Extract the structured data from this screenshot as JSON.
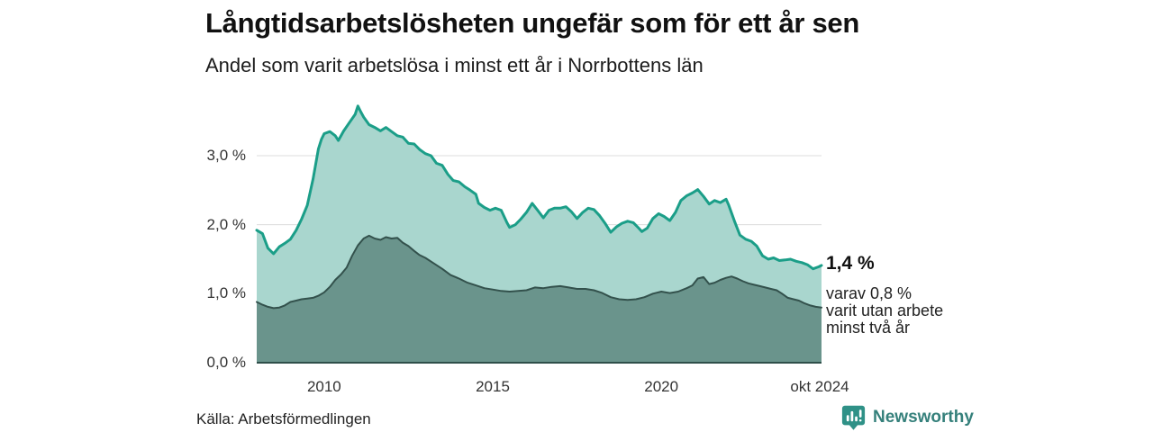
{
  "header": {
    "title": "Långtidsarbetslösheten ungefär som för ett år sen",
    "subtitle": "Andel som varit arbetslösa i minst ett år i Norrbottens län"
  },
  "annotation": {
    "value_label": "1,4 %",
    "sub_line1": "varav 0,8 %",
    "sub_line2": "varit utan arbete",
    "sub_line3": "minst två år"
  },
  "footer": {
    "source": "Källa: Arbetsförmedlingen",
    "brand": "Newsworthy",
    "brand_icon": "bar-chart-bubble-icon"
  },
  "colors": {
    "line_primary": "#1b9e88",
    "fill_primary": "#a9d6ce",
    "line_secondary": "#33514c",
    "fill_secondary": "#6a948c",
    "grid": "#dcdcdc",
    "baseline": "#2f4f4a",
    "brand_teal": "#35807b",
    "brand_icon_teal": "#2f9187"
  },
  "chart_data": {
    "type": "area",
    "title": "Långtidsarbetslösheten ungefär som för ett år sen",
    "subtitle": "Andel som varit arbetslösa i minst ett år i Norrbottens län",
    "unit": "%",
    "grid": true,
    "x_axis": {
      "range": [
        2008.0,
        2024.75
      ],
      "ticks": [
        {
          "x": 2010,
          "label": "2010"
        },
        {
          "x": 2015,
          "label": "2015"
        },
        {
          "x": 2020,
          "label": "2020"
        },
        {
          "x": 2024.75,
          "label": "okt 2024"
        }
      ]
    },
    "y_axis": {
      "range": [
        0,
        3.9
      ],
      "ticks": [
        {
          "v": 0,
          "label": "0,0 %"
        },
        {
          "v": 1,
          "label": "1,0 %"
        },
        {
          "v": 2,
          "label": "2,0 %"
        },
        {
          "v": 3,
          "label": "3,0 %"
        }
      ]
    },
    "series": [
      {
        "name": "Andel arbetslösa minst ett år",
        "end_value": 1.4,
        "end_label": "1,4 %",
        "line_color": "#1b9e88",
        "fill_color": "#a9d6ce",
        "line_width": 3,
        "points": [
          [
            2008.0,
            1.92
          ],
          [
            2008.17,
            1.87
          ],
          [
            2008.33,
            1.66
          ],
          [
            2008.5,
            1.58
          ],
          [
            2008.67,
            1.68
          ],
          [
            2008.83,
            1.73
          ],
          [
            2009.0,
            1.79
          ],
          [
            2009.17,
            1.92
          ],
          [
            2009.33,
            2.08
          ],
          [
            2009.5,
            2.28
          ],
          [
            2009.67,
            2.66
          ],
          [
            2009.83,
            3.1
          ],
          [
            2009.92,
            3.24
          ],
          [
            2010.0,
            3.32
          ],
          [
            2010.17,
            3.35
          ],
          [
            2010.33,
            3.29
          ],
          [
            2010.42,
            3.22
          ],
          [
            2010.58,
            3.36
          ],
          [
            2010.75,
            3.48
          ],
          [
            2010.92,
            3.6
          ],
          [
            2011.0,
            3.72
          ],
          [
            2011.08,
            3.64
          ],
          [
            2011.17,
            3.56
          ],
          [
            2011.33,
            3.45
          ],
          [
            2011.5,
            3.41
          ],
          [
            2011.67,
            3.36
          ],
          [
            2011.83,
            3.41
          ],
          [
            2012.0,
            3.35
          ],
          [
            2012.17,
            3.29
          ],
          [
            2012.33,
            3.27
          ],
          [
            2012.5,
            3.18
          ],
          [
            2012.67,
            3.17
          ],
          [
            2012.83,
            3.09
          ],
          [
            2013.0,
            3.03
          ],
          [
            2013.17,
            3.0
          ],
          [
            2013.33,
            2.89
          ],
          [
            2013.5,
            2.86
          ],
          [
            2013.67,
            2.73
          ],
          [
            2013.83,
            2.64
          ],
          [
            2014.0,
            2.62
          ],
          [
            2014.17,
            2.55
          ],
          [
            2014.33,
            2.5
          ],
          [
            2014.5,
            2.44
          ],
          [
            2014.58,
            2.31
          ],
          [
            2014.75,
            2.25
          ],
          [
            2014.92,
            2.21
          ],
          [
            2015.08,
            2.24
          ],
          [
            2015.25,
            2.21
          ],
          [
            2015.42,
            2.03
          ],
          [
            2015.5,
            1.96
          ],
          [
            2015.67,
            2.0
          ],
          [
            2015.83,
            2.08
          ],
          [
            2016.0,
            2.18
          ],
          [
            2016.17,
            2.31
          ],
          [
            2016.33,
            2.21
          ],
          [
            2016.5,
            2.1
          ],
          [
            2016.67,
            2.21
          ],
          [
            2016.83,
            2.24
          ],
          [
            2017.0,
            2.24
          ],
          [
            2017.17,
            2.26
          ],
          [
            2017.33,
            2.19
          ],
          [
            2017.5,
            2.09
          ],
          [
            2017.67,
            2.18
          ],
          [
            2017.83,
            2.24
          ],
          [
            2018.0,
            2.22
          ],
          [
            2018.17,
            2.13
          ],
          [
            2018.33,
            2.02
          ],
          [
            2018.5,
            1.89
          ],
          [
            2018.67,
            1.97
          ],
          [
            2018.83,
            2.02
          ],
          [
            2019.0,
            2.05
          ],
          [
            2019.17,
            2.03
          ],
          [
            2019.33,
            1.95
          ],
          [
            2019.42,
            1.9
          ],
          [
            2019.58,
            1.95
          ],
          [
            2019.75,
            2.09
          ],
          [
            2019.92,
            2.16
          ],
          [
            2020.08,
            2.12
          ],
          [
            2020.25,
            2.06
          ],
          [
            2020.42,
            2.18
          ],
          [
            2020.58,
            2.35
          ],
          [
            2020.75,
            2.42
          ],
          [
            2020.92,
            2.46
          ],
          [
            2021.08,
            2.51
          ],
          [
            2021.25,
            2.41
          ],
          [
            2021.42,
            2.3
          ],
          [
            2021.58,
            2.35
          ],
          [
            2021.75,
            2.32
          ],
          [
            2021.92,
            2.37
          ],
          [
            2022.0,
            2.28
          ],
          [
            2022.17,
            2.05
          ],
          [
            2022.33,
            1.85
          ],
          [
            2022.5,
            1.79
          ],
          [
            2022.67,
            1.76
          ],
          [
            2022.83,
            1.69
          ],
          [
            2023.0,
            1.55
          ],
          [
            2023.17,
            1.5
          ],
          [
            2023.33,
            1.52
          ],
          [
            2023.5,
            1.48
          ],
          [
            2023.67,
            1.49
          ],
          [
            2023.83,
            1.5
          ],
          [
            2024.0,
            1.47
          ],
          [
            2024.17,
            1.45
          ],
          [
            2024.33,
            1.42
          ],
          [
            2024.5,
            1.36
          ],
          [
            2024.67,
            1.39
          ],
          [
            2024.75,
            1.41
          ]
        ]
      },
      {
        "name": "varav utan arbete minst två år",
        "end_value": 0.8,
        "end_label": "varav 0,8 % varit utan arbete minst två år",
        "line_color": "#33514c",
        "fill_color": "#6a948c",
        "line_width": 2,
        "points": [
          [
            2008.0,
            0.88
          ],
          [
            2008.17,
            0.84
          ],
          [
            2008.33,
            0.81
          ],
          [
            2008.5,
            0.79
          ],
          [
            2008.67,
            0.8
          ],
          [
            2008.83,
            0.83
          ],
          [
            2009.0,
            0.88
          ],
          [
            2009.17,
            0.9
          ],
          [
            2009.33,
            0.92
          ],
          [
            2009.5,
            0.93
          ],
          [
            2009.67,
            0.94
          ],
          [
            2009.83,
            0.97
          ],
          [
            2010.0,
            1.02
          ],
          [
            2010.17,
            1.1
          ],
          [
            2010.33,
            1.2
          ],
          [
            2010.5,
            1.28
          ],
          [
            2010.67,
            1.38
          ],
          [
            2010.83,
            1.55
          ],
          [
            2011.0,
            1.7
          ],
          [
            2011.17,
            1.8
          ],
          [
            2011.33,
            1.84
          ],
          [
            2011.5,
            1.8
          ],
          [
            2011.67,
            1.78
          ],
          [
            2011.83,
            1.82
          ],
          [
            2012.0,
            1.8
          ],
          [
            2012.17,
            1.81
          ],
          [
            2012.33,
            1.74
          ],
          [
            2012.5,
            1.69
          ],
          [
            2012.67,
            1.62
          ],
          [
            2012.83,
            1.56
          ],
          [
            2013.0,
            1.52
          ],
          [
            2013.25,
            1.44
          ],
          [
            2013.5,
            1.36
          ],
          [
            2013.75,
            1.27
          ],
          [
            2014.0,
            1.22
          ],
          [
            2014.25,
            1.16
          ],
          [
            2014.5,
            1.12
          ],
          [
            2014.75,
            1.08
          ],
          [
            2015.0,
            1.06
          ],
          [
            2015.25,
            1.04
          ],
          [
            2015.5,
            1.03
          ],
          [
            2015.75,
            1.04
          ],
          [
            2016.0,
            1.05
          ],
          [
            2016.25,
            1.09
          ],
          [
            2016.5,
            1.08
          ],
          [
            2016.75,
            1.1
          ],
          [
            2017.0,
            1.11
          ],
          [
            2017.25,
            1.09
          ],
          [
            2017.5,
            1.07
          ],
          [
            2017.75,
            1.07
          ],
          [
            2018.0,
            1.05
          ],
          [
            2018.25,
            1.01
          ],
          [
            2018.5,
            0.95
          ],
          [
            2018.75,
            0.92
          ],
          [
            2019.0,
            0.91
          ],
          [
            2019.25,
            0.92
          ],
          [
            2019.5,
            0.95
          ],
          [
            2019.75,
            1.0
          ],
          [
            2020.0,
            1.03
          ],
          [
            2020.25,
            1.01
          ],
          [
            2020.5,
            1.03
          ],
          [
            2020.75,
            1.08
          ],
          [
            2020.92,
            1.12
          ],
          [
            2021.08,
            1.22
          ],
          [
            2021.25,
            1.24
          ],
          [
            2021.42,
            1.14
          ],
          [
            2021.58,
            1.16
          ],
          [
            2021.75,
            1.2
          ],
          [
            2021.92,
            1.23
          ],
          [
            2022.08,
            1.25
          ],
          [
            2022.25,
            1.22
          ],
          [
            2022.42,
            1.18
          ],
          [
            2022.58,
            1.15
          ],
          [
            2022.75,
            1.13
          ],
          [
            2022.92,
            1.11
          ],
          [
            2023.08,
            1.09
          ],
          [
            2023.25,
            1.07
          ],
          [
            2023.42,
            1.05
          ],
          [
            2023.58,
            1.0
          ],
          [
            2023.75,
            0.94
          ],
          [
            2023.92,
            0.92
          ],
          [
            2024.08,
            0.9
          ],
          [
            2024.25,
            0.86
          ],
          [
            2024.42,
            0.83
          ],
          [
            2024.58,
            0.81
          ],
          [
            2024.75,
            0.8
          ]
        ]
      }
    ]
  }
}
